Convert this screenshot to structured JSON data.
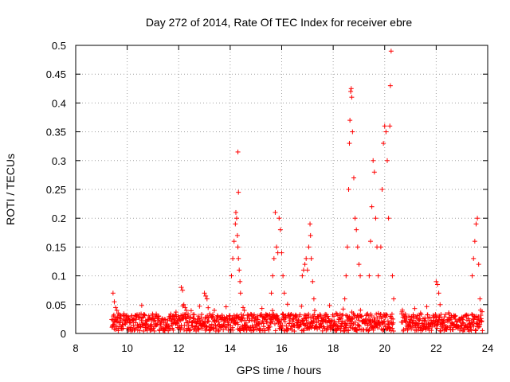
{
  "chart_data": {
    "type": "scatter",
    "title": "Day 272 of 2014, Rate Of TEC Index for receiver ebre",
    "xlabel": "GPS time / hours",
    "ylabel": "ROTI / TECUs",
    "xlim": [
      8,
      24
    ],
    "ylim": [
      0,
      0.5
    ],
    "xticks": [
      8,
      10,
      12,
      14,
      16,
      18,
      20,
      22,
      24
    ],
    "yticks": [
      0,
      0.05,
      0.1,
      0.15,
      0.2,
      0.25,
      0.3,
      0.35,
      0.4,
      0.45,
      0.5
    ],
    "xtick_labels": [
      "8",
      "10",
      "12",
      "14",
      "16",
      "18",
      "20",
      "22",
      "24"
    ],
    "ytick_labels": [
      "0",
      "0.05",
      "0.1",
      "0.15",
      "0.2",
      "0.25",
      "0.3",
      "0.35",
      "0.4",
      "0.45",
      "0.5"
    ],
    "grid": true,
    "marker": "+",
    "series_color": "#ff0000",
    "series": [
      {
        "name": "ROTI",
        "points": [
          [
            9.45,
            0.07
          ],
          [
            9.5,
            0.055
          ],
          [
            9.55,
            0.045
          ],
          [
            9.6,
            0.04
          ],
          [
            9.65,
            0.035
          ],
          [
            12.1,
            0.08
          ],
          [
            12.15,
            0.075
          ],
          [
            12.2,
            0.05
          ],
          [
            12.25,
            0.045
          ],
          [
            12.3,
            0.04
          ],
          [
            13.0,
            0.07
          ],
          [
            13.05,
            0.065
          ],
          [
            13.1,
            0.06
          ],
          [
            14.05,
            0.1
          ],
          [
            14.1,
            0.13
          ],
          [
            14.15,
            0.16
          ],
          [
            14.2,
            0.19
          ],
          [
            14.22,
            0.21
          ],
          [
            14.25,
            0.2
          ],
          [
            14.28,
            0.17
          ],
          [
            14.3,
            0.15
          ],
          [
            14.32,
            0.13
          ],
          [
            14.35,
            0.11
          ],
          [
            14.38,
            0.09
          ],
          [
            14.4,
            0.07
          ],
          [
            14.3,
            0.315
          ],
          [
            14.32,
            0.245
          ],
          [
            14.5,
            0.045
          ],
          [
            14.55,
            0.04
          ],
          [
            15.6,
            0.07
          ],
          [
            15.65,
            0.1
          ],
          [
            15.7,
            0.13
          ],
          [
            15.75,
            0.21
          ],
          [
            15.8,
            0.15
          ],
          [
            15.85,
            0.14
          ],
          [
            15.9,
            0.2
          ],
          [
            15.95,
            0.18
          ],
          [
            16.0,
            0.14
          ],
          [
            16.05,
            0.1
          ],
          [
            16.1,
            0.07
          ],
          [
            16.8,
            0.1
          ],
          [
            16.85,
            0.11
          ],
          [
            16.9,
            0.12
          ],
          [
            16.95,
            0.13
          ],
          [
            17.0,
            0.11
          ],
          [
            17.05,
            0.15
          ],
          [
            17.1,
            0.19
          ],
          [
            17.12,
            0.17
          ],
          [
            17.15,
            0.13
          ],
          [
            17.2,
            0.09
          ],
          [
            17.25,
            0.06
          ],
          [
            18.45,
            0.06
          ],
          [
            18.5,
            0.1
          ],
          [
            18.55,
            0.15
          ],
          [
            18.6,
            0.25
          ],
          [
            18.63,
            0.33
          ],
          [
            18.65,
            0.37
          ],
          [
            18.68,
            0.42
          ],
          [
            18.7,
            0.425
          ],
          [
            18.72,
            0.41
          ],
          [
            18.75,
            0.35
          ],
          [
            18.8,
            0.27
          ],
          [
            18.85,
            0.2
          ],
          [
            18.9,
            0.18
          ],
          [
            18.95,
            0.15
          ],
          [
            19.0,
            0.12
          ],
          [
            19.05,
            0.1
          ],
          [
            19.4,
            0.1
          ],
          [
            19.45,
            0.16
          ],
          [
            19.5,
            0.22
          ],
          [
            19.55,
            0.3
          ],
          [
            19.6,
            0.28
          ],
          [
            19.65,
            0.2
          ],
          [
            19.7,
            0.15
          ],
          [
            19.75,
            0.1
          ],
          [
            19.85,
            0.15
          ],
          [
            19.9,
            0.25
          ],
          [
            19.95,
            0.33
          ],
          [
            20.0,
            0.36
          ],
          [
            20.05,
            0.35
          ],
          [
            20.1,
            0.3
          ],
          [
            20.15,
            0.2
          ],
          [
            20.2,
            0.36
          ],
          [
            20.22,
            0.43
          ],
          [
            20.25,
            0.49
          ],
          [
            20.3,
            0.1
          ],
          [
            20.35,
            0.06
          ],
          [
            22.0,
            0.09
          ],
          [
            22.05,
            0.085
          ],
          [
            22.1,
            0.07
          ],
          [
            22.15,
            0.05
          ],
          [
            23.4,
            0.1
          ],
          [
            23.45,
            0.13
          ],
          [
            23.5,
            0.16
          ],
          [
            23.55,
            0.19
          ],
          [
            23.6,
            0.2
          ],
          [
            23.65,
            0.12
          ],
          [
            23.7,
            0.06
          ]
        ]
      }
    ]
  }
}
